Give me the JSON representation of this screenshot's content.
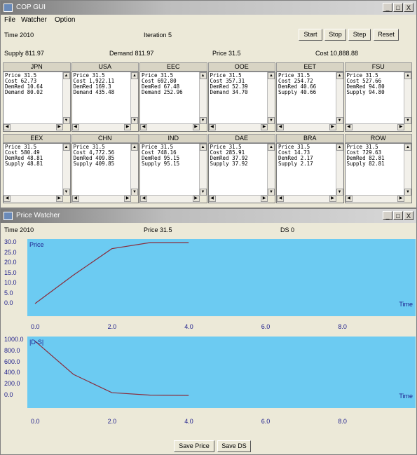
{
  "main_window": {
    "title": "COP GUI",
    "controls": [
      "_",
      "□",
      "X"
    ],
    "menu": [
      "File",
      "Watcher",
      "Option"
    ],
    "time": "Time 2010",
    "iteration": "Iteration 5",
    "buttons": {
      "start": "Start",
      "stop": "Stop",
      "step": "Step",
      "reset": "Reset"
    },
    "supply": "Supply 811.97",
    "demand": "Demand 811.97",
    "price": "Price 31.5",
    "cost": "Cost 10,888.88",
    "regions": [
      {
        "name": "JPN",
        "text": "Price 31.5\nCost 62.73\nDemRed 10.64\nDemand 80.02"
      },
      {
        "name": "USA",
        "text": "Price 31.5\nCost 1,922.11\nDemRed 169.3\nDemand 435.48"
      },
      {
        "name": "EEC",
        "text": "Price 31.5\nCost 692.80\nDemRed 67.48\nDemand 252.96"
      },
      {
        "name": "OOE",
        "text": "Price 31.5\nCost 357.31\nDemRed 52.39\nDemand 34.70"
      },
      {
        "name": "EET",
        "text": "Price 31.5\nCost 254.72\nDemRed 40.66\nSupply 40.66"
      },
      {
        "name": "FSU",
        "text": "Price 31.5\nCost 527.66\nDemRed 94.80\nSupply 94.80"
      },
      {
        "name": "EEX",
        "text": "Price 31.5\nCost 580.49\nDemRed 48.81\nSupply 48.81"
      },
      {
        "name": "CHN",
        "text": "Price 31.5\nCost 4,772.56\nDemRed 409.85\nSupply 409.85"
      },
      {
        "name": "IND",
        "text": "Price 31.5\nCost 748.16\nDemRed 95.15\nSupply 95.15"
      },
      {
        "name": "DAE",
        "text": "Price 31.5\nCost 285.91\nDemRed 37.92\nSupply 37.92"
      },
      {
        "name": "BRA",
        "text": "Price 31.5\nCost 14.73\nDemRed 2.17\nSupply 2.17"
      },
      {
        "name": "ROW",
        "text": "Price 31.5\nCost 729.63\nDemRed 82.81\nSupply 82.81"
      }
    ]
  },
  "watcher_window": {
    "title": "Price Watcher",
    "controls": [
      "_",
      "□",
      "X"
    ],
    "time": "Time 2010",
    "price": "Price 31.5",
    "ds": "DS 0",
    "buttons": {
      "save_price": "Save Price",
      "save_ds": "Save DS"
    }
  },
  "colors": {
    "plot_bg": "#6ccbf2",
    "series_line": "#8a2d3c",
    "axis_text": "#1d1d8c"
  },
  "chart_data": [
    {
      "type": "line",
      "title": "Price",
      "xlabel": "Time",
      "ylabel": "",
      "xlim": [
        0,
        9.6
      ],
      "ylim": [
        0,
        30
      ],
      "yticks": [
        "30.0",
        "25.0",
        "20.0",
        "15.0",
        "10.0",
        "5.0",
        "0.0"
      ],
      "xticks": [
        "0.0",
        "2.0",
        "4.0",
        "6.0",
        "8.0"
      ],
      "x": [
        0,
        1,
        2,
        3,
        4
      ],
      "values": [
        0,
        14,
        27,
        30,
        30
      ]
    },
    {
      "type": "line",
      "title": "|D-S|",
      "xlabel": "Time",
      "ylabel": "",
      "xlim": [
        0,
        9.6
      ],
      "ylim": [
        0,
        1000
      ],
      "yticks": [
        "1000.0",
        "800.0",
        "600.0",
        "400.0",
        "200.0",
        "0.0"
      ],
      "xticks": [
        "0.0",
        "2.0",
        "4.0",
        "6.0",
        "8.0"
      ],
      "x": [
        0,
        1,
        2,
        3,
        4
      ],
      "values": [
        980,
        380,
        50,
        5,
        0
      ]
    }
  ]
}
